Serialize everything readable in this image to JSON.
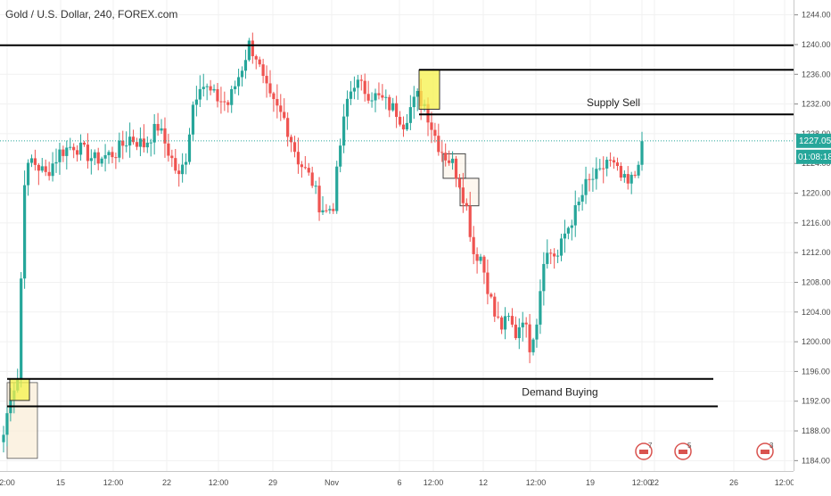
{
  "header": {
    "ticker": "Gold / U.S. Dollar, 240, FOREX.com"
  },
  "colors": {
    "up": "#26a69a",
    "down": "#ef5350",
    "grid": "#f1f1f1",
    "price_line": "#26a69a",
    "zone_yellow": "#f5f24a",
    "zone_light": "#f9ecd6",
    "line": "#000000"
  },
  "chart_data": {
    "type": "candlestick",
    "title": "Gold / U.S. Dollar, 240, FOREX.com",
    "x_labels": [
      "2:00",
      "15",
      "12:00",
      "22",
      "12:00",
      "29",
      "Nov",
      "6",
      "12:00",
      "12",
      "12:00",
      "19",
      "12:00",
      "22",
      "26",
      "12:00"
    ],
    "y_ticks": [
      1184,
      1188,
      1192,
      1196,
      1200,
      1204,
      1208,
      1212,
      1216,
      1220,
      1224,
      1228,
      1232,
      1236,
      1240,
      1244
    ],
    "ylim": [
      1182.6,
      1246.0
    ],
    "grid": true,
    "last_price": "1227.05",
    "countdown": "01:08:18",
    "anchors": [
      [
        0,
        1187.5
      ],
      [
        2,
        1193.0
      ],
      [
        4,
        1195.0
      ],
      [
        6,
        1222.0
      ],
      [
        8,
        1224.5
      ],
      [
        12,
        1222.5
      ],
      [
        16,
        1225.5
      ],
      [
        20,
        1226.5
      ],
      [
        26,
        1224.5
      ],
      [
        32,
        1225.5
      ],
      [
        36,
        1227.5
      ],
      [
        40,
        1226.5
      ],
      [
        44,
        1229.0
      ],
      [
        48,
        1224.5
      ],
      [
        50,
        1222.0
      ],
      [
        52,
        1225.0
      ],
      [
        54,
        1232.0
      ],
      [
        56,
        1235.0
      ],
      [
        60,
        1233.0
      ],
      [
        64,
        1232.0
      ],
      [
        68,
        1237.0
      ],
      [
        70,
        1240.0
      ],
      [
        72,
        1238.5
      ],
      [
        74,
        1235.0
      ],
      [
        76,
        1232.5
      ],
      [
        80,
        1230.0
      ],
      [
        84,
        1224.5
      ],
      [
        88,
        1221.5
      ],
      [
        90,
        1218.5
      ],
      [
        92,
        1217.5
      ],
      [
        94,
        1218.5
      ],
      [
        96,
        1226.5
      ],
      [
        98,
        1232.5
      ],
      [
        100,
        1235.0
      ],
      [
        104,
        1233.5
      ],
      [
        108,
        1232.5
      ],
      [
        112,
        1231.0
      ],
      [
        114,
        1229.5
      ],
      [
        116,
        1231.5
      ],
      [
        118,
        1233.0
      ],
      [
        120,
        1232.0
      ],
      [
        122,
        1229.0
      ],
      [
        124,
        1226.5
      ],
      [
        126,
        1225.0
      ],
      [
        128,
        1224.0
      ],
      [
        130,
        1221.5
      ],
      [
        132,
        1218.0
      ],
      [
        134,
        1212.0
      ],
      [
        136,
        1211.5
      ],
      [
        138,
        1207.5
      ],
      [
        140,
        1203.5
      ],
      [
        142,
        1202.0
      ],
      [
        144,
        1203.0
      ],
      [
        146,
        1201.0
      ],
      [
        148,
        1203.5
      ],
      [
        150,
        1199.5
      ],
      [
        152,
        1203.0
      ],
      [
        154,
        1211.5
      ],
      [
        156,
        1212.0
      ],
      [
        158,
        1211.5
      ],
      [
        160,
        1214.5
      ],
      [
        162,
        1216.5
      ],
      [
        164,
        1218.5
      ],
      [
        166,
        1221.0
      ],
      [
        168,
        1222.0
      ],
      [
        170,
        1222.5
      ],
      [
        172,
        1224.5
      ],
      [
        174,
        1223.5
      ],
      [
        176,
        1222.0
      ],
      [
        178,
        1221.0
      ],
      [
        180,
        1222.5
      ],
      [
        182,
        1227.0
      ]
    ],
    "annotations": {
      "supply_label": "Supply Sell",
      "demand_label": "Demand Buying",
      "horizontal_lines": [
        {
          "name": "resistance-line-top",
          "price": 1239.9,
          "from": 0,
          "to": 932
        },
        {
          "name": "supply-zone-top-line",
          "price": 1236.6,
          "from": 470,
          "to": 890
        },
        {
          "name": "supply-zone-bottom-line",
          "price": 1230.6,
          "from": 470,
          "to": 890
        },
        {
          "name": "demand-zone-top-line",
          "price": 1195.0,
          "from": 8,
          "to": 800
        },
        {
          "name": "demand-zone-bottom-line",
          "price": 1191.3,
          "from": 8,
          "to": 805
        }
      ],
      "boxes": [
        {
          "name": "supply-zone-yellow-box",
          "p1": 1236.6,
          "p2": 1231.3,
          "from": 470,
          "to": 493,
          "kind": "yellow"
        },
        {
          "name": "demand-zone-yellow-box",
          "p1": 1195.0,
          "p2": 1192.1,
          "from": 11,
          "to": 33,
          "kind": "yellow"
        },
        {
          "name": "pullback-box-1",
          "p1": 1225.3,
          "p2": 1222.0,
          "from": 497,
          "to": 522,
          "kind": "outline"
        },
        {
          "name": "pullback-box-2",
          "p1": 1222.0,
          "p2": 1218.3,
          "from": 516,
          "to": 537,
          "kind": "outline"
        },
        {
          "name": "demand-origin-box",
          "p1": 1194.5,
          "p2": 1184.3,
          "from": 8,
          "to": 42,
          "kind": "light"
        }
      ],
      "event_icons": [
        {
          "label": "7",
          "position": "near-22"
        },
        {
          "label": "5",
          "position": "after-22"
        },
        {
          "label": "3",
          "position": "near-26"
        }
      ]
    }
  }
}
